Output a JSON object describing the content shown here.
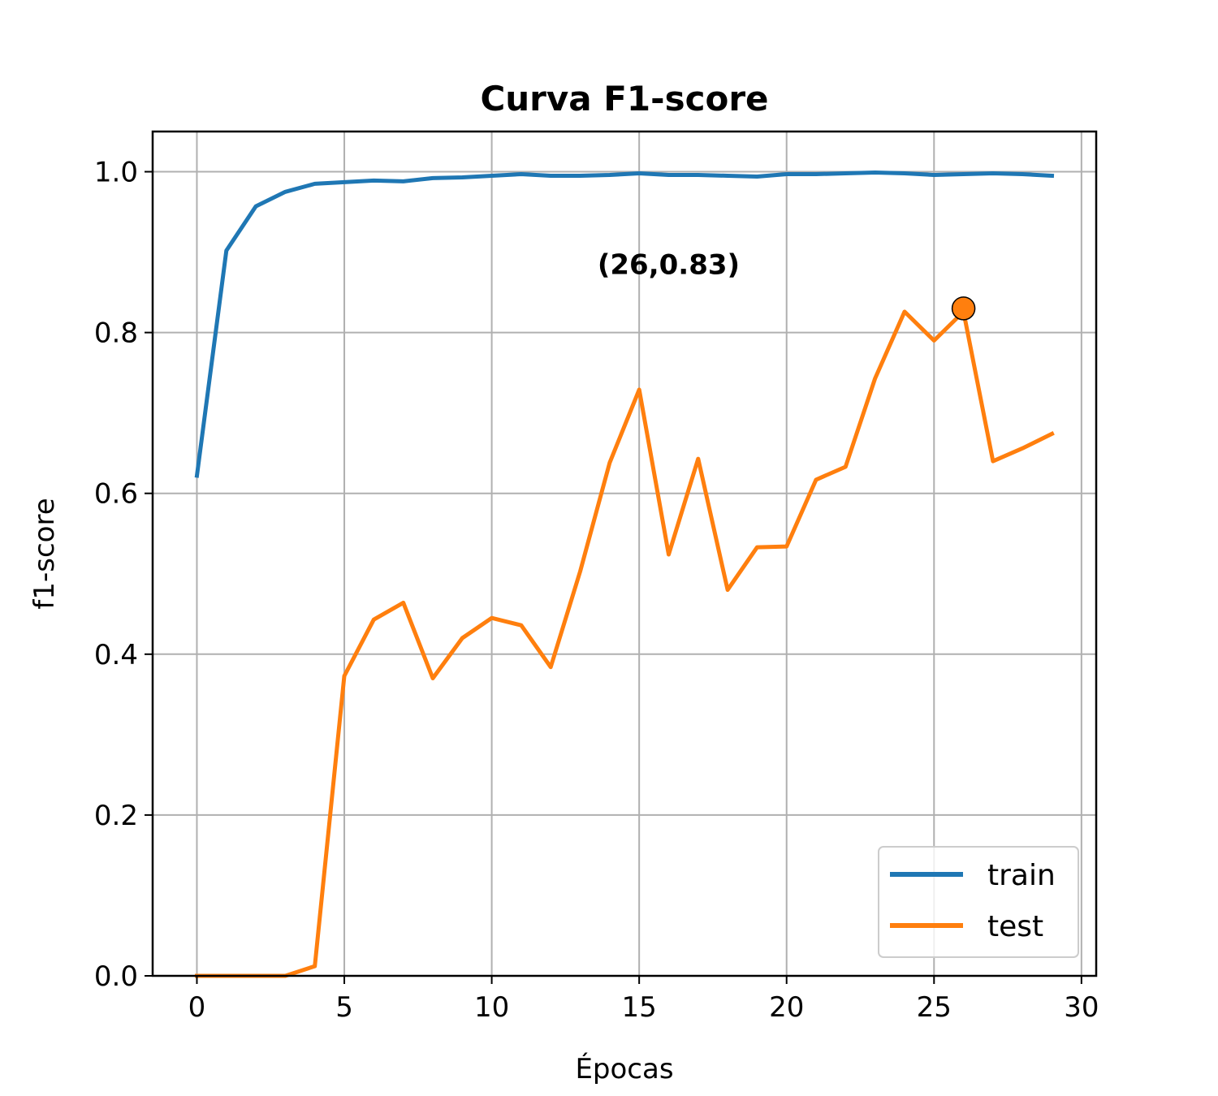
{
  "chart_data": {
    "type": "line",
    "title": "Curva F1-score",
    "xlabel": "Épocas",
    "ylabel": "f1-score",
    "xlim": [
      -1.5,
      30.5
    ],
    "ylim": [
      0.0,
      1.05
    ],
    "xticks": [
      "0",
      "5",
      "10",
      "15",
      "20",
      "25",
      "30"
    ],
    "xtick_values": [
      0,
      5,
      10,
      15,
      20,
      25,
      30
    ],
    "yticks": [
      "0.0",
      "0.2",
      "0.4",
      "0.6",
      "0.8",
      "1.0"
    ],
    "ytick_values": [
      0.0,
      0.2,
      0.4,
      0.6,
      0.8,
      1.0
    ],
    "grid": true,
    "legend_position": "lower-right",
    "x": [
      0,
      1,
      2,
      3,
      4,
      5,
      6,
      7,
      8,
      9,
      10,
      11,
      12,
      13,
      14,
      15,
      16,
      17,
      18,
      19,
      20,
      21,
      22,
      23,
      24,
      25,
      26,
      27,
      28,
      29
    ],
    "series": [
      {
        "name": "train",
        "color": "#1f77b4",
        "values": [
          0.622,
          0.902,
          0.957,
          0.975,
          0.985,
          0.987,
          0.989,
          0.988,
          0.992,
          0.993,
          0.995,
          0.997,
          0.995,
          0.995,
          0.996,
          0.998,
          0.996,
          0.996,
          0.995,
          0.994,
          0.997,
          0.997,
          0.998,
          0.999,
          0.998,
          0.996,
          0.997,
          0.998,
          0.997,
          0.995
        ]
      },
      {
        "name": "test",
        "color": "#ff7f0e",
        "values": [
          0.0,
          0.0,
          0.0,
          0.0,
          0.012,
          0.373,
          0.443,
          0.464,
          0.37,
          0.42,
          0.445,
          0.436,
          0.384,
          0.503,
          0.638,
          0.729,
          0.524,
          0.643,
          0.48,
          0.533,
          0.534,
          0.617,
          0.633,
          0.743,
          0.826,
          0.79,
          0.826,
          0.64,
          0.656,
          0.674
        ]
      }
    ],
    "highlight_point": {
      "x": 26,
      "y": 0.83,
      "color": "#ff7f0e"
    },
    "annotation": {
      "text": "(26,0.83)",
      "x": 16,
      "y": 0.885
    }
  }
}
